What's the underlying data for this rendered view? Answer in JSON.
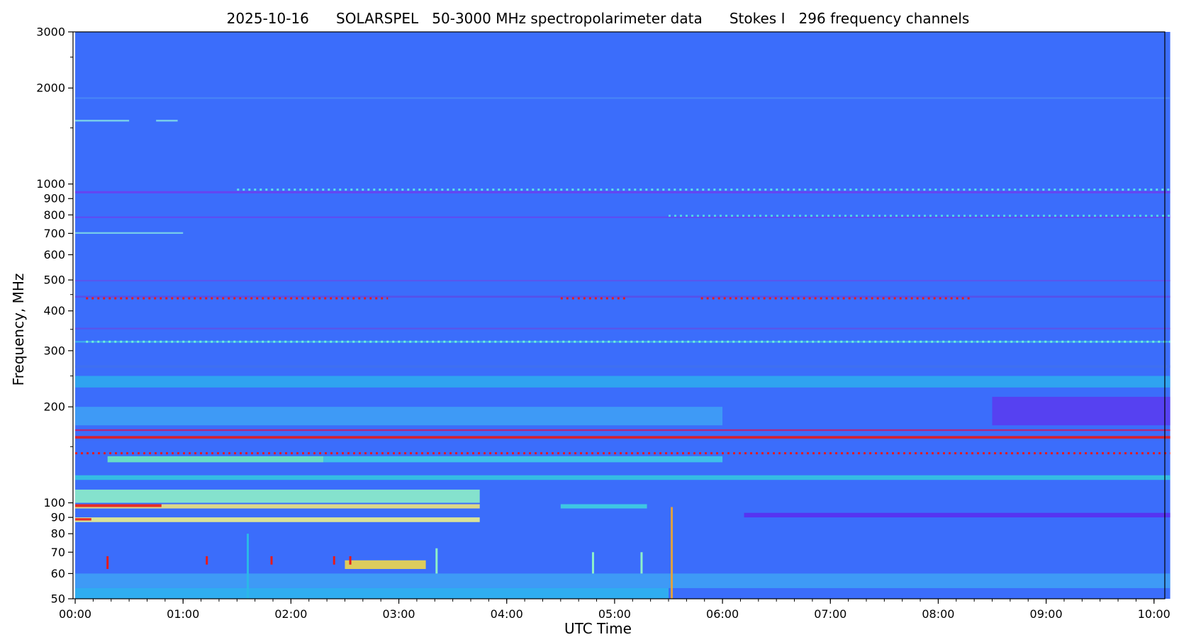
{
  "chart_data": {
    "type": "heatmap",
    "title": "2025-10-16      SOLARSPEL   50-3000 MHz spectropolarimeter data      Stokes I   296 frequency channels",
    "xlabel": "UTC Time",
    "ylabel": "Frequency, MHz",
    "x_range_hours": [
      -0.02,
      10.1
    ],
    "y_range_mhz": [
      50,
      3000
    ],
    "y_scale": "log",
    "x_ticks": [
      {
        "value": 0,
        "label": "00:00"
      },
      {
        "value": 1,
        "label": "01:00"
      },
      {
        "value": 2,
        "label": "02:00"
      },
      {
        "value": 3,
        "label": "03:00"
      },
      {
        "value": 4,
        "label": "04:00"
      },
      {
        "value": 5,
        "label": "05:00"
      },
      {
        "value": 6,
        "label": "06:00"
      },
      {
        "value": 7,
        "label": "07:00"
      },
      {
        "value": 8,
        "label": "08:00"
      },
      {
        "value": 9,
        "label": "09:00"
      },
      {
        "value": 10,
        "label": "10:00"
      }
    ],
    "y_ticks": [
      {
        "value": 50,
        "label": "50"
      },
      {
        "value": 60,
        "label": "60"
      },
      {
        "value": 70,
        "label": "70"
      },
      {
        "value": 80,
        "label": "80"
      },
      {
        "value": 90,
        "label": "90"
      },
      {
        "value": 100,
        "label": "100"
      },
      {
        "value": 200,
        "label": "200"
      },
      {
        "value": 300,
        "label": "300"
      },
      {
        "value": 400,
        "label": "400"
      },
      {
        "value": 500,
        "label": "500"
      },
      {
        "value": 600,
        "label": "600"
      },
      {
        "value": 700,
        "label": "700"
      },
      {
        "value": 800,
        "label": "800"
      },
      {
        "value": 900,
        "label": "900"
      },
      {
        "value": 1000,
        "label": "1000"
      },
      {
        "value": 2000,
        "label": "2000"
      },
      {
        "value": 3000,
        "label": "3000"
      }
    ],
    "y_minor_ticks": [
      150,
      250,
      350,
      450,
      1500,
      2500
    ],
    "data_start_hours": 0.0,
    "data_end_hours": 10.15,
    "colors": {
      "background": "#3b6dfb",
      "low": "#5a3cf0",
      "mid": "#2ab8e8",
      "high": "#e0f070",
      "peak": "#e81a1a"
    },
    "bands": [
      {
        "f_low": 54,
        "f_high": 60,
        "t_start": 0.0,
        "t_end": 10.15,
        "color": "#3f9ff5"
      },
      {
        "f_low": 50,
        "f_high": 54,
        "t_start": 0.0,
        "t_end": 5.5,
        "color": "#2fb4ee"
      },
      {
        "f_low": 62,
        "f_high": 66,
        "t_start": 2.5,
        "t_end": 3.25,
        "color": "#f0d64a"
      },
      {
        "f_low": 87,
        "f_high": 90,
        "t_start": 0.0,
        "t_end": 3.75,
        "color": "#ecf08c"
      },
      {
        "f_low": 96,
        "f_high": 99,
        "t_start": 0.0,
        "t_end": 3.75,
        "color": "#f0e27a"
      },
      {
        "f_low": 97,
        "f_high": 99,
        "t_start": 0.0,
        "t_end": 0.8,
        "color": "#e81a1a"
      },
      {
        "f_low": 88,
        "f_high": 89.5,
        "t_start": 0.0,
        "t_end": 0.15,
        "color": "#e81a1a"
      },
      {
        "f_low": 100,
        "f_high": 110,
        "t_start": 0.0,
        "t_end": 3.75,
        "color": "#8eeec8"
      },
      {
        "f_low": 90,
        "f_high": 93,
        "t_start": 6.2,
        "t_end": 10.15,
        "color": "#5a2ef0"
      },
      {
        "f_low": 96,
        "f_high": 99,
        "t_start": 4.5,
        "t_end": 5.3,
        "color": "#3fd0e0"
      },
      {
        "f_low": 118,
        "f_high": 122,
        "t_start": 0.0,
        "t_end": 10.15,
        "color": "#34c4e0"
      },
      {
        "f_low": 134,
        "f_high": 140,
        "t_start": 0.3,
        "t_end": 2.3,
        "color": "#6de8c0"
      },
      {
        "f_low": 134,
        "f_high": 140,
        "t_start": 2.3,
        "t_end": 6.0,
        "color": "#3fc8e8"
      },
      {
        "f_low": 159,
        "f_high": 162,
        "t_start": 0.0,
        "t_end": 10.15,
        "color": "#e81a1a"
      },
      {
        "f_low": 168,
        "f_high": 170,
        "t_start": 0.0,
        "t_end": 10.15,
        "color": "#c02070"
      },
      {
        "f_low": 175,
        "f_high": 200,
        "t_start": 0.0,
        "t_end": 6.0,
        "color": "#3f9ff5"
      },
      {
        "f_low": 175,
        "f_high": 215,
        "t_start": 8.5,
        "t_end": 10.15,
        "color": "#5a3cf0"
      },
      {
        "f_low": 230,
        "f_high": 250,
        "t_start": 0.0,
        "t_end": 10.15,
        "color": "#2fa8ee"
      },
      {
        "f_low": 265,
        "f_high": 270,
        "t_start": 0.0,
        "t_end": 10.15,
        "color": "#4070f0"
      },
      {
        "f_low": 318,
        "f_high": 322,
        "t_start": 0.0,
        "t_end": 10.15,
        "color": "#3fb0ee"
      },
      {
        "f_low": 350,
        "f_high": 354,
        "t_start": 0.0,
        "t_end": 10.15,
        "color": "#5f50e8"
      },
      {
        "f_low": 440,
        "f_high": 446,
        "t_start": 0.0,
        "t_end": 10.15,
        "color": "#5a4ce8"
      },
      {
        "f_low": 495,
        "f_high": 500,
        "t_start": 0.0,
        "t_end": 10.15,
        "color": "#5f52ea"
      },
      {
        "f_low": 698,
        "f_high": 706,
        "t_start": 0.0,
        "t_end": 1.0,
        "color": "#7fd8e8"
      },
      {
        "f_low": 783,
        "f_high": 790,
        "t_start": 0.0,
        "t_end": 10.15,
        "color": "#6a3ff0"
      },
      {
        "f_low": 935,
        "f_high": 950,
        "t_start": 0.0,
        "t_end": 10.15,
        "color": "#6a3ff0"
      },
      {
        "f_low": 1570,
        "f_high": 1590,
        "t_start": 0.0,
        "t_end": 0.5,
        "color": "#7fd8e8"
      },
      {
        "f_low": 1570,
        "f_high": 1590,
        "t_start": 0.75,
        "t_end": 0.95,
        "color": "#7fd8e8"
      },
      {
        "f_low": 1850,
        "f_high": 1870,
        "t_start": 0.0,
        "t_end": 10.15,
        "color": "#4a88f5"
      }
    ],
    "spikes": [
      {
        "t": 0.3,
        "f_low": 62,
        "f_high": 68,
        "color": "#e81a1a"
      },
      {
        "t": 1.22,
        "f_low": 64,
        "f_high": 68,
        "color": "#e81a1a"
      },
      {
        "t": 1.82,
        "f_low": 64,
        "f_high": 68,
        "color": "#e81a1a"
      },
      {
        "t": 2.4,
        "f_low": 64,
        "f_high": 68,
        "color": "#e81a1a"
      },
      {
        "t": 2.55,
        "f_low": 64,
        "f_high": 68,
        "color": "#e81a1a"
      },
      {
        "t": 5.53,
        "f_low": 50,
        "f_high": 97,
        "color": "#e0a040"
      },
      {
        "t": 3.35,
        "f_low": 60,
        "f_high": 72,
        "color": "#8ef0c8"
      },
      {
        "t": 4.8,
        "f_low": 60,
        "f_high": 70,
        "color": "#8ef0c8"
      },
      {
        "t": 5.25,
        "f_low": 60,
        "f_high": 70,
        "color": "#8ef0c8"
      },
      {
        "t": 1.6,
        "f_low": 50,
        "f_high": 80,
        "color": "#2ab8e8"
      }
    ],
    "dotted_lines": [
      {
        "f": 438,
        "t_start": 0.1,
        "t_end": 2.9,
        "color": "#e81a1a"
      },
      {
        "f": 438,
        "t_start": 4.5,
        "t_end": 5.1,
        "color": "#e81a1a"
      },
      {
        "f": 438,
        "t_start": 5.8,
        "t_end": 8.3,
        "color": "#e81a1a"
      },
      {
        "f": 143,
        "t_start": 0.0,
        "t_end": 10.15,
        "color": "#e81a1a"
      },
      {
        "f": 320,
        "t_start": 0.1,
        "t_end": 10.15,
        "color": "#6ff0d8"
      },
      {
        "f": 960,
        "t_start": 1.5,
        "t_end": 10.15,
        "color": "#5ee0e8"
      },
      {
        "f": 795,
        "t_start": 5.5,
        "t_end": 10.15,
        "color": "#4ed0e8"
      }
    ]
  }
}
